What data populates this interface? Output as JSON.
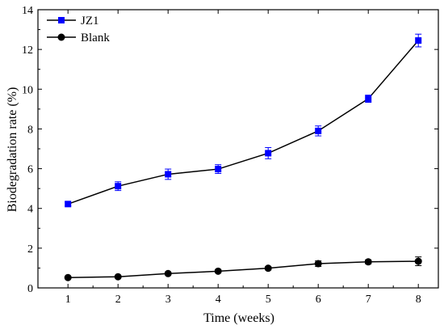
{
  "chart_data": {
    "type": "line",
    "title": "",
    "xlabel": "Time (weeks)",
    "ylabel": "Biodegradation rate (%)",
    "x": [
      1,
      2,
      3,
      4,
      5,
      6,
      7,
      8
    ],
    "xlim": [
      0.4,
      8.4
    ],
    "ylim": [
      0,
      14
    ],
    "x_ticks": [
      1,
      2,
      3,
      4,
      5,
      6,
      7,
      8
    ],
    "y_ticks": [
      0,
      2,
      4,
      6,
      8,
      10,
      12,
      14
    ],
    "grid": false,
    "legend_position": "top-left",
    "series": [
      {
        "name": "JZ1",
        "marker": "square",
        "color": "#0000ff",
        "line_color": "#000000",
        "values": [
          4.22,
          5.12,
          5.72,
          5.98,
          6.78,
          7.9,
          9.52,
          12.45
        ],
        "errors": [
          0.1,
          0.22,
          0.26,
          0.22,
          0.28,
          0.25,
          0.18,
          0.32
        ]
      },
      {
        "name": "Blank",
        "marker": "circle",
        "color": "#000000",
        "line_color": "#000000",
        "values": [
          0.52,
          0.56,
          0.72,
          0.84,
          0.99,
          1.22,
          1.31,
          1.34
        ],
        "errors": [
          0.05,
          0.05,
          0.06,
          0.07,
          0.08,
          0.14,
          0.1,
          0.22
        ]
      }
    ]
  }
}
